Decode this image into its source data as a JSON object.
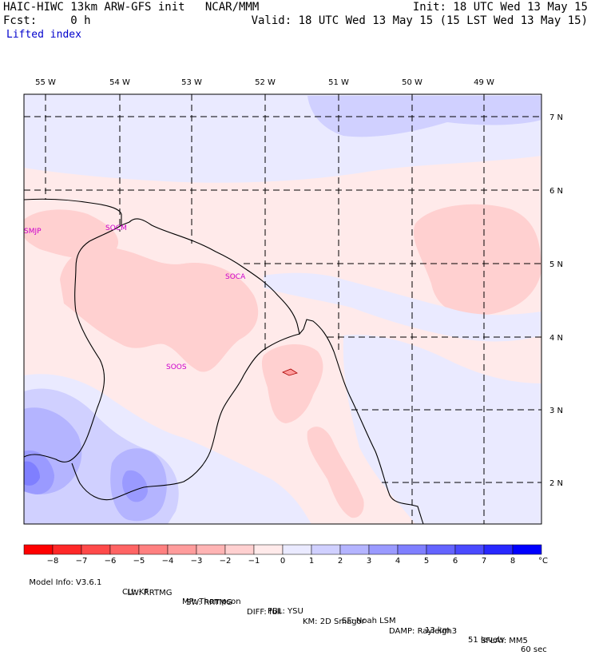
{
  "header": {
    "line1_left": "HAIC-HIWC 13km ARW-GFS init   NCAR/MMM",
    "line1_right": "Init: 18 UTC Wed 13 May 15",
    "line2_left": "Fcst:     0 h",
    "line2_right": "Valid: 18 UTC Wed 13 May 15 (15 LST Wed 13 May 15)",
    "field": "Lifted index"
  },
  "map": {
    "lon_labels": [
      "55 W",
      "54 W",
      "53 W",
      "52 W",
      "51 W",
      "50 W",
      "49 W"
    ],
    "lat_labels": [
      "7 N",
      "6 N",
      "5 N",
      "4 N",
      "3 N",
      "2 N"
    ],
    "stations": [
      "SMJP",
      "SOCM",
      "SOCA",
      "SOOS"
    ]
  },
  "colorbar": {
    "labels": [
      "−8",
      "−7",
      "−6",
      "−5",
      "−4",
      "−3",
      "−2",
      "−1",
      "0",
      "1",
      "2",
      "3",
      "4",
      "5",
      "6",
      "7",
      "8"
    ],
    "unit": "°C",
    "colors": [
      "#ff0000",
      "#ff2828",
      "#ff4a4a",
      "#ff6464",
      "#ff8080",
      "#ff9c9c",
      "#ffb4b4",
      "#ffd0d0",
      "#ffeaea",
      "#eaeaff",
      "#d0d0ff",
      "#b4b4ff",
      "#9a9aff",
      "#7f7fff",
      "#6464ff",
      "#4a4aff",
      "#2828ff",
      "#0000ff"
    ]
  },
  "footer": {
    "line1": [
      "Model Info: V3.6.1",
      "CU: KF",
      "MP: Thompson",
      "PBL: YSU",
      "SF: Noah LSM",
      "13 km",
      "51 levels",
      "60 sec"
    ],
    "line2": [
      "LW: RRTMG",
      "SW: RRTMG",
      "DIFF: full",
      "KM: 2D Smagor",
      "DAMP: Rayleigh3",
      "SFLAY: MM5"
    ]
  }
}
